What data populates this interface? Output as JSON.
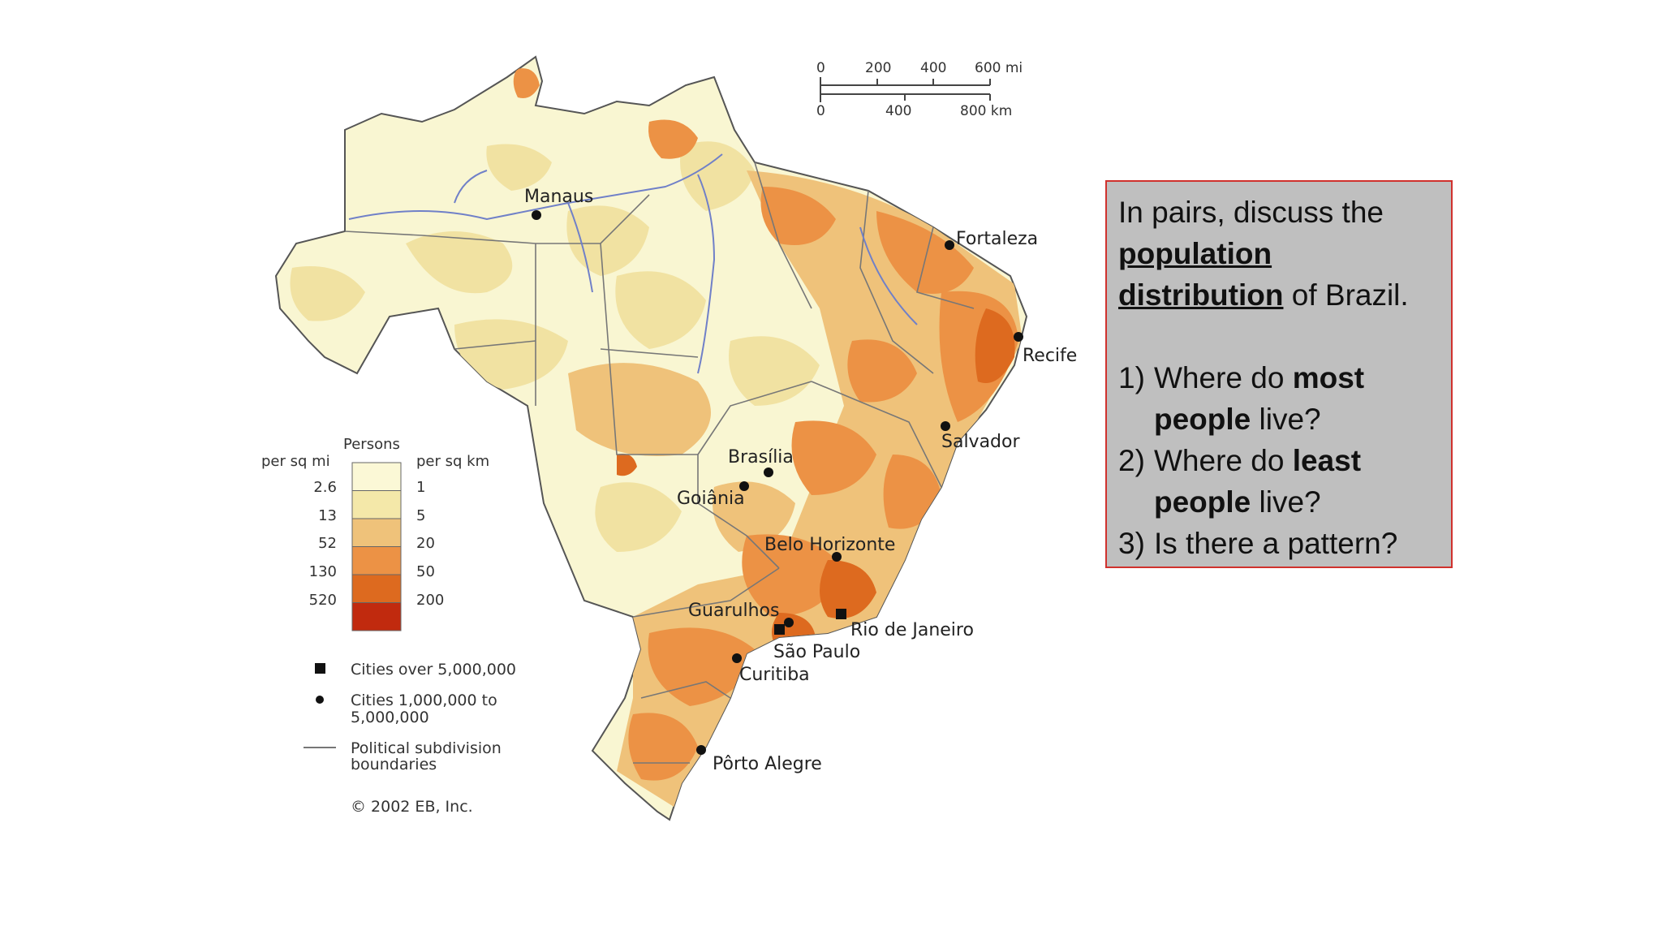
{
  "discussion": {
    "intro_prefix": "In pairs, discuss the",
    "intro_bold": "population distribution",
    "intro_suffix": "of Brazil.",
    "questions": [
      {
        "num": "1)",
        "before": "Where do",
        "bold": "most people",
        "after": "live?"
      },
      {
        "num": "2)",
        "before": "Where do",
        "bold": "least people",
        "after": "live?"
      },
      {
        "num": "3)",
        "before": "Is there a pattern?",
        "bold": "",
        "after": ""
      }
    ]
  },
  "map": {
    "cities": {
      "manaus": "Manaus",
      "fortaleza": "Fortaleza",
      "recife": "Recife",
      "salvador": "Salvador",
      "brasilia": "Brasília",
      "goiania": "Goiânia",
      "belo_horizonte": "Belo Horizonte",
      "guarulhos": "Guarulhos",
      "rio": "Rio de Janeiro",
      "sao_paulo": "São Paulo",
      "curitiba": "Curitiba",
      "porto_alegre": "Pôrto Alegre"
    },
    "scale": {
      "mi_ticks": [
        "0",
        "200",
        "400",
        "600 mi"
      ],
      "km_ticks": [
        "0",
        "400",
        "800 km"
      ]
    },
    "legend": {
      "title": "Persons",
      "left_header": "per sq mi",
      "right_header": "per sq km",
      "left_values": [
        "2.6",
        "13",
        "52",
        "130",
        "520"
      ],
      "right_values": [
        "1",
        "5",
        "20",
        "50",
        "200"
      ],
      "colors": [
        "#fbf8d6",
        "#f4e8a9",
        "#efc27a",
        "#ec9245",
        "#dd6a1f",
        "#c12a0e"
      ],
      "symbols": {
        "big_cities": "Cities over 5,000,000",
        "mid_cities_1": "Cities 1,000,000 to",
        "mid_cities_2": "5,000,000",
        "boundaries_1": "Political subdivision",
        "boundaries_2": "boundaries"
      },
      "copyright": "© 2002 EB, Inc."
    }
  }
}
